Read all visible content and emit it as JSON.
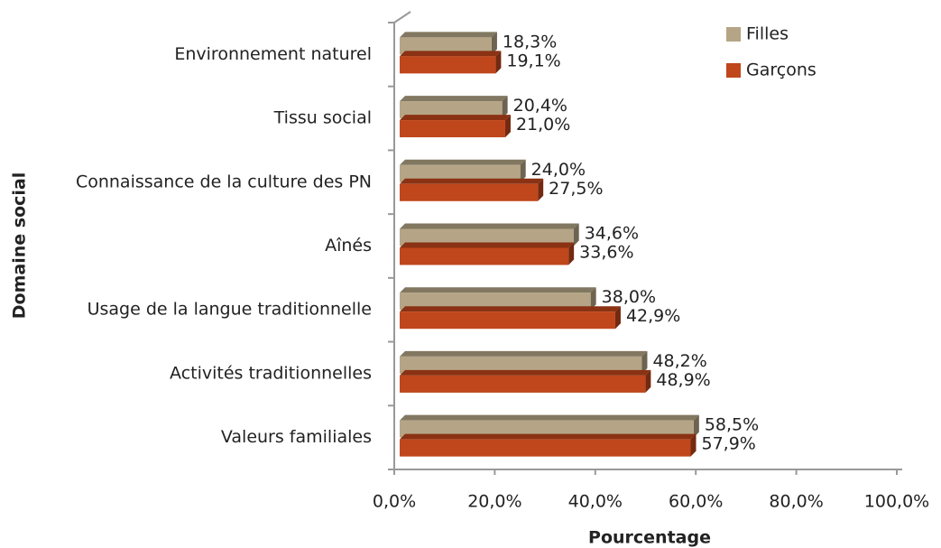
{
  "chart_data": {
    "type": "bar",
    "horizontal": true,
    "xlabel": "Pourcentage",
    "ylabel": "Domaine social",
    "categories": [
      "Environnement naturel",
      "Tissu social",
      "Connaissance de la culture des PN",
      "Aînés",
      "Usage de la langue traditionnelle",
      "Activités traditionnelles",
      "Valeurs familiales"
    ],
    "series": [
      {
        "name": "Filles",
        "color": "#b5a586",
        "values": [
          18.3,
          20.4,
          24.0,
          34.6,
          38.0,
          48.2,
          58.5
        ],
        "value_labels": [
          "18,3%",
          "20,4%",
          "24,0%",
          "34,6%",
          "38,0%",
          "48,2%",
          "58,5%"
        ]
      },
      {
        "name": "Garçons",
        "color": "#c0461b",
        "values": [
          19.1,
          21.0,
          27.5,
          33.6,
          42.9,
          48.9,
          57.9
        ],
        "value_labels": [
          "19,1%",
          "21,0%",
          "27,5%",
          "33,6%",
          "42,9%",
          "48,9%",
          "57,9%"
        ]
      }
    ],
    "xlim": [
      0,
      100
    ],
    "xticks": [
      {
        "value": 0,
        "label": "0,0%"
      },
      {
        "value": 20,
        "label": "20,0%"
      },
      {
        "value": 40,
        "label": "40,0%"
      },
      {
        "value": 60,
        "label": "60,0%"
      },
      {
        "value": 80,
        "label": "80,0%"
      },
      {
        "value": 100,
        "label": "100,0%"
      }
    ],
    "grid": false,
    "legend": "top-right"
  }
}
